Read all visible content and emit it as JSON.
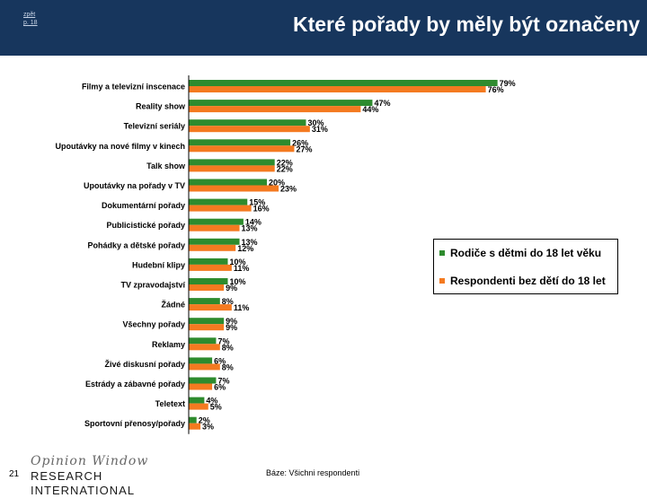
{
  "header": {
    "source_link_line1": "zpět",
    "source_link_line2": "p. 18",
    "title": "Které pořady by měly být označeny"
  },
  "footer": {
    "page_number": "21",
    "logo_script": "Opinion Window",
    "logo_main": "RESEARCH INTERNATIONAL",
    "base_note": "Báze: Všichni respondenti"
  },
  "colors": {
    "header_bg": "#17365d",
    "series_parents": "#2e8b2e",
    "series_nonparents": "#f47a20"
  },
  "chart_data": {
    "type": "bar",
    "orientation": "horizontal",
    "categories": [
      "Filmy a televizní inscenace",
      "Reality show",
      "Televizní seriály",
      "Upoutávky na nové filmy v kinech",
      "Talk show",
      "Upoutávky na pořady v TV",
      "Dokumentární pořady",
      "Publicistické pořady",
      "Pohádky a dětské pořady",
      "Hudební klipy",
      "TV zpravodajství",
      "Žádné",
      "Všechny pořady",
      "Reklamy",
      "Živé diskusní pořady",
      "Estrády a zábavné pořady",
      "Teletext",
      "Sportovní přenosy/pořady"
    ],
    "series": [
      {
        "name": "Rodiče s dětmi do 18 let věku",
        "values": [
          79,
          47,
          30,
          26,
          22,
          20,
          15,
          14,
          13,
          10,
          10,
          8,
          9,
          7,
          6,
          7,
          4,
          2
        ]
      },
      {
        "name": "Respondenti bez dětí do 18 let",
        "values": [
          76,
          44,
          31,
          27,
          22,
          23,
          16,
          13,
          12,
          11,
          9,
          11,
          9,
          8,
          8,
          6,
          5,
          3
        ]
      }
    ],
    "value_suffix": "%",
    "xlim": [
      0,
      100
    ],
    "grid": false,
    "legend_position": "right"
  }
}
